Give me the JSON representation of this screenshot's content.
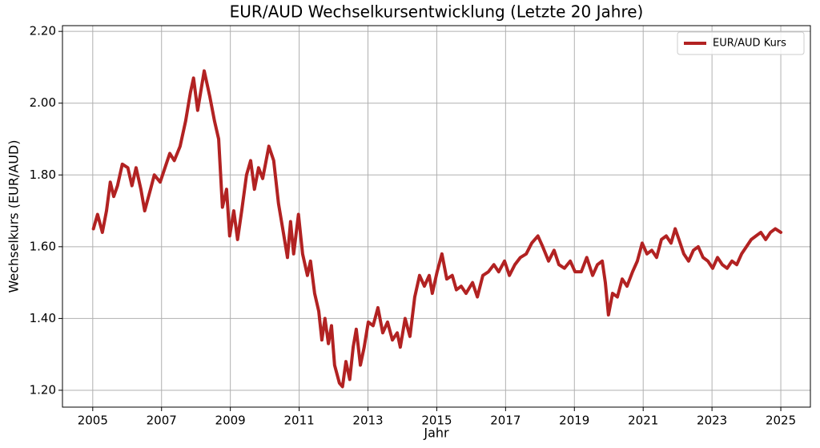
{
  "chart_data": {
    "type": "line",
    "title": "EUR/AUD Wechselkursentwicklung (Letzte 20 Jahre)",
    "x_label": "Jahr",
    "y_label": "Wechselkurs (EUR/AUD)",
    "x": [
      2005.02,
      2005.14,
      2005.28,
      2005.4,
      2005.51,
      2005.61,
      2005.72,
      2005.86,
      2006.02,
      2006.14,
      2006.26,
      2006.4,
      2006.51,
      2006.68,
      2006.79,
      2006.96,
      2007.1,
      2007.24,
      2007.37,
      2007.54,
      2007.7,
      2007.84,
      2007.93,
      2008.05,
      2008.24,
      2008.4,
      2008.54,
      2008.66,
      2008.77,
      2008.89,
      2008.98,
      2009.1,
      2009.21,
      2009.33,
      2009.47,
      2009.59,
      2009.7,
      2009.82,
      2009.94,
      2010.12,
      2010.26,
      2010.4,
      2010.54,
      2010.66,
      2010.75,
      2010.84,
      2010.98,
      2011.1,
      2011.24,
      2011.33,
      2011.45,
      2011.57,
      2011.66,
      2011.75,
      2011.85,
      2011.94,
      2012.03,
      2012.17,
      2012.26,
      2012.36,
      2012.47,
      2012.57,
      2012.66,
      2012.78,
      2012.89,
      2013.01,
      2013.15,
      2013.29,
      2013.43,
      2013.57,
      2013.71,
      2013.85,
      2013.94,
      2014.08,
      2014.22,
      2014.36,
      2014.5,
      2014.64,
      2014.78,
      2014.87,
      2015.01,
      2015.15,
      2015.29,
      2015.45,
      2015.57,
      2015.71,
      2015.85,
      2016.04,
      2016.18,
      2016.34,
      2016.5,
      2016.66,
      2016.8,
      2016.97,
      2017.11,
      2017.27,
      2017.43,
      2017.6,
      2017.76,
      2017.94,
      2018.08,
      2018.25,
      2018.41,
      2018.55,
      2018.71,
      2018.88,
      2019.02,
      2019.2,
      2019.36,
      2019.53,
      2019.67,
      2019.81,
      2019.9,
      2019.99,
      2020.11,
      2020.25,
      2020.39,
      2020.53,
      2020.69,
      2020.83,
      2020.97,
      2021.11,
      2021.25,
      2021.39,
      2021.53,
      2021.67,
      2021.81,
      2021.93,
      2022.04,
      2022.18,
      2022.32,
      2022.46,
      2022.6,
      2022.74,
      2022.88,
      2023.02,
      2023.16,
      2023.3,
      2023.44,
      2023.58,
      2023.72,
      2023.86,
      2024.0,
      2024.14,
      2024.28,
      2024.42,
      2024.56,
      2024.7,
      2024.84,
      2025.0
    ],
    "series": [
      {
        "name": "EUR/AUD Kurs",
        "color": "#b22222",
        "values": [
          1.65,
          1.69,
          1.64,
          1.7,
          1.78,
          1.74,
          1.77,
          1.83,
          1.82,
          1.77,
          1.82,
          1.76,
          1.7,
          1.76,
          1.8,
          1.78,
          1.82,
          1.86,
          1.84,
          1.88,
          1.95,
          2.03,
          2.07,
          1.98,
          2.09,
          2.02,
          1.95,
          1.9,
          1.71,
          1.76,
          1.63,
          1.7,
          1.62,
          1.7,
          1.8,
          1.84,
          1.76,
          1.82,
          1.79,
          1.88,
          1.84,
          1.72,
          1.64,
          1.57,
          1.67,
          1.58,
          1.69,
          1.58,
          1.52,
          1.56,
          1.47,
          1.42,
          1.34,
          1.4,
          1.33,
          1.38,
          1.27,
          1.22,
          1.21,
          1.28,
          1.23,
          1.32,
          1.37,
          1.27,
          1.32,
          1.39,
          1.38,
          1.43,
          1.36,
          1.39,
          1.34,
          1.36,
          1.32,
          1.4,
          1.35,
          1.46,
          1.52,
          1.49,
          1.52,
          1.47,
          1.53,
          1.58,
          1.51,
          1.52,
          1.48,
          1.49,
          1.47,
          1.5,
          1.46,
          1.52,
          1.53,
          1.55,
          1.53,
          1.56,
          1.52,
          1.55,
          1.57,
          1.58,
          1.61,
          1.63,
          1.6,
          1.56,
          1.59,
          1.55,
          1.54,
          1.56,
          1.53,
          1.53,
          1.57,
          1.52,
          1.55,
          1.56,
          1.5,
          1.41,
          1.47,
          1.46,
          1.51,
          1.49,
          1.53,
          1.56,
          1.61,
          1.58,
          1.59,
          1.57,
          1.62,
          1.63,
          1.61,
          1.65,
          1.62,
          1.58,
          1.56,
          1.59,
          1.6,
          1.57,
          1.56,
          1.54,
          1.57,
          1.55,
          1.54,
          1.56,
          1.55,
          1.58,
          1.6,
          1.62,
          1.63,
          1.64,
          1.62,
          1.64,
          1.65,
          1.64
        ]
      }
    ],
    "xlim": [
      2004.12,
      2025.86
    ],
    "ylim": [
      1.153,
      2.216
    ],
    "xticks": [
      2005,
      2007,
      2009,
      2011,
      2013,
      2015,
      2017,
      2019,
      2021,
      2023,
      2025
    ],
    "yticks": [
      {
        "value": 1.2,
        "label": "1.20"
      },
      {
        "value": 1.4,
        "label": "1.40"
      },
      {
        "value": 1.6,
        "label": "1.60"
      },
      {
        "value": 1.8,
        "label": "1.80"
      },
      {
        "value": 2.0,
        "label": "2.00"
      },
      {
        "value": 2.2,
        "label": "2.20"
      }
    ],
    "grid": true,
    "legend": "upper-right"
  }
}
